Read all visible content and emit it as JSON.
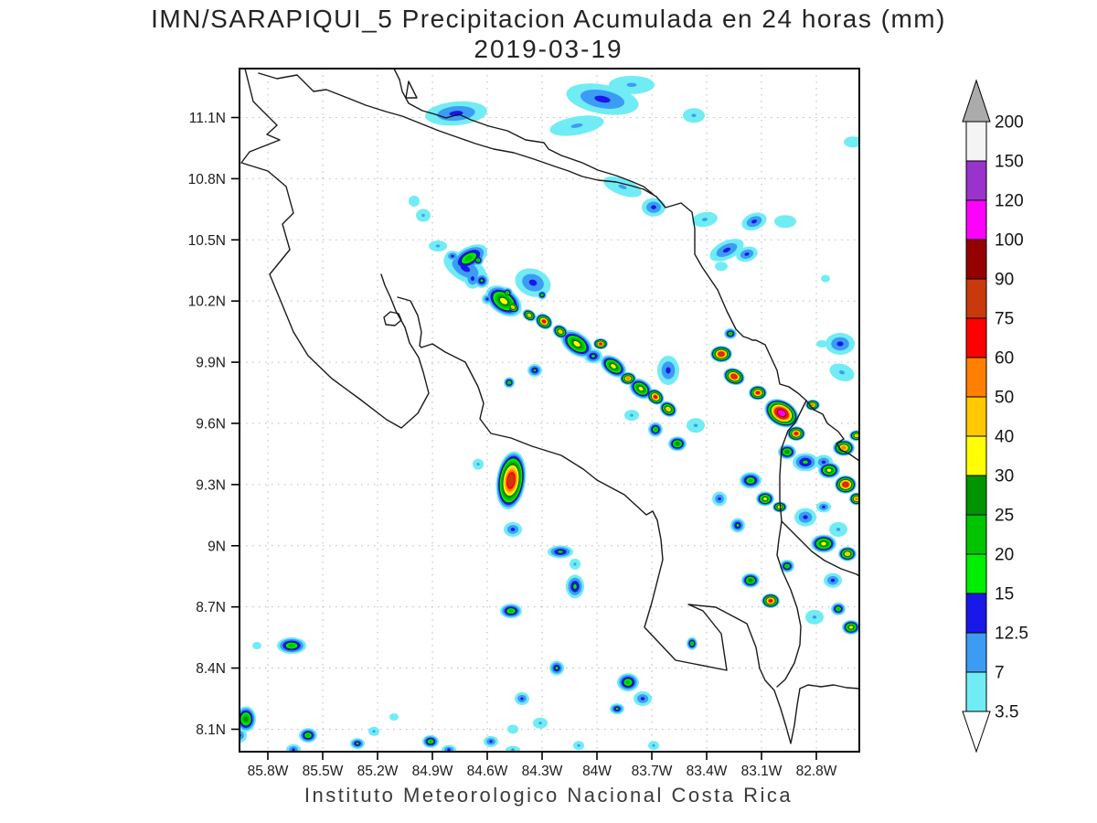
{
  "title": {
    "line1": "IMN/SARAPIQUI_5 Precipitacion Acumulada en 24 horas (mm)",
    "line2": "2019-03-19"
  },
  "footer": "Instituto Meteorologico Nacional Costa Rica",
  "map_axes": {
    "lat_labels": [
      "11.1N",
      "10.8N",
      "10.5N",
      "10.2N",
      "9.9N",
      "9.6N",
      "9.3N",
      "9N",
      "8.7N",
      "8.4N",
      "8.1N"
    ],
    "lon_labels": [
      "85.8W",
      "85.5W",
      "85.2W",
      "84.9W",
      "84.6W",
      "84.3W",
      "84W",
      "83.7W",
      "83.4W",
      "83.1W",
      "82.8W"
    ],
    "grid_color": "#b8b8b8",
    "frame_color": "#000000"
  },
  "colorbar": {
    "labels_top_to_bottom": [
      "200",
      "150",
      "120",
      "100",
      "90",
      "75",
      "60",
      "50",
      "40",
      "30",
      "25",
      "20",
      "15",
      "12.5",
      "7",
      "3.5"
    ],
    "over_arrow_color": "#ababab",
    "under_arrow_color": "#ffffff"
  },
  "chart_data": {
    "type": "heatmap",
    "title": "IMN/SARAPIQUI_5 Precipitacion Acumulada en 24 horas (mm)",
    "date": "2019-03-19",
    "units": "mm / 24 h",
    "source_caption": "Instituto Meteorologico Nacional Costa Rica",
    "lon_extent_degW": [
      85.955,
      82.565
    ],
    "lat_extent_degN": [
      7.99,
      11.34
    ],
    "grid_step_deg": 0.3,
    "lon_tick_degW": [
      85.8,
      85.5,
      85.2,
      84.9,
      84.6,
      84.3,
      84.0,
      83.7,
      83.4,
      83.1,
      82.8
    ],
    "lat_tick_degN": [
      11.1,
      10.8,
      10.5,
      10.2,
      9.9,
      9.6,
      9.3,
      9.0,
      8.7,
      8.4,
      8.1
    ],
    "levels_mm": [
      3.5,
      7,
      12.5,
      15,
      20,
      25,
      30,
      40,
      50,
      60,
      75,
      90,
      100,
      120,
      150,
      200
    ],
    "palette": [
      "#70ecf4",
      "#3c9cf4",
      "#1818e8",
      "#00ee00",
      "#00c400",
      "#009400",
      "#ffff00",
      "#ffc800",
      "#ff8000",
      "#ff0000",
      "#c83a0c",
      "#950000",
      "#ff00ff",
      "#9933cb",
      "#f4f4f4",
      "#ababab"
    ],
    "max_cell": {
      "lon_degW": 82.99,
      "lat_degN": 9.65,
      "mm": 110
    },
    "cells_note": "each cell = [lon_degW, lat_degN, peak_mm, rx_px, ry_px, rot_deg] - footprint radii in map pixels (200px/deg lon, 223px/deg lat)",
    "cells": [
      [
        84.77,
        11.12,
        12.5,
        34,
        13,
        -5
      ],
      [
        83.97,
        11.19,
        12.5,
        40,
        16,
        10
      ],
      [
        83.81,
        11.26,
        7,
        25,
        10,
        0
      ],
      [
        84.11,
        11.06,
        7,
        30,
        10,
        -10
      ],
      [
        83.69,
        10.66,
        12.5,
        13,
        10,
        0
      ],
      [
        83.86,
        10.76,
        7,
        22,
        9,
        20
      ],
      [
        83.47,
        11.11,
        7,
        12,
        8,
        0
      ],
      [
        82.6,
        10.98,
        3.5,
        10,
        6,
        0
      ],
      [
        85.0,
        10.69,
        3.5,
        6,
        6,
        0
      ],
      [
        84.95,
        10.62,
        7,
        8,
        7,
        0
      ],
      [
        84.7,
        10.41,
        20,
        22,
        12,
        -30
      ],
      [
        84.68,
        10.31,
        12.5,
        9,
        11,
        0
      ],
      [
        84.51,
        10.23,
        3.5,
        6,
        6,
        0
      ],
      [
        83.41,
        10.6,
        7,
        14,
        8,
        -10
      ],
      [
        83.14,
        10.59,
        12.5,
        14,
        9,
        -20
      ],
      [
        82.97,
        10.59,
        3.5,
        12,
        7,
        0
      ],
      [
        83.29,
        10.45,
        12.5,
        20,
        10,
        -25
      ],
      [
        83.18,
        10.43,
        12.5,
        12,
        8,
        -15
      ],
      [
        83.32,
        10.37,
        3.5,
        7,
        5,
        0
      ],
      [
        82.75,
        10.31,
        3.5,
        5,
        4,
        0
      ],
      [
        82.77,
        9.99,
        3.5,
        6,
        4,
        0
      ],
      [
        82.67,
        9.99,
        12.5,
        16,
        12,
        0
      ],
      [
        82.66,
        9.85,
        7,
        14,
        9,
        20
      ],
      [
        84.87,
        10.47,
        7,
        10,
        6,
        0
      ],
      [
        84.79,
        10.42,
        12.5,
        8,
        6,
        0
      ],
      [
        84.72,
        10.36,
        12.5,
        26,
        14,
        30
      ],
      [
        84.63,
        10.3,
        15,
        8,
        8,
        0
      ],
      [
        84.65,
        10.4,
        20,
        6,
        6,
        0
      ],
      [
        84.51,
        10.2,
        30,
        22,
        14,
        35
      ],
      [
        84.46,
        10.17,
        40,
        8,
        6,
        35
      ],
      [
        84.37,
        10.13,
        40,
        8,
        6,
        35
      ],
      [
        84.29,
        10.1,
        60,
        10,
        8,
        35
      ],
      [
        84.2,
        10.05,
        40,
        9,
        7,
        35
      ],
      [
        84.11,
        9.99,
        30,
        20,
        12,
        35
      ],
      [
        83.98,
        9.99,
        60,
        8,
        6,
        0
      ],
      [
        84.02,
        9.93,
        15,
        10,
        8,
        0
      ],
      [
        83.91,
        9.88,
        30,
        16,
        10,
        35
      ],
      [
        83.83,
        9.82,
        50,
        9,
        7,
        0
      ],
      [
        83.76,
        9.77,
        30,
        14,
        10,
        35
      ],
      [
        83.68,
        9.73,
        60,
        10,
        8,
        35
      ],
      [
        83.61,
        9.67,
        40,
        10,
        8,
        35
      ],
      [
        83.32,
        9.94,
        75,
        12,
        9,
        0
      ],
      [
        83.25,
        9.83,
        75,
        12,
        9,
        20
      ],
      [
        83.12,
        9.75,
        60,
        10,
        8,
        0
      ],
      [
        82.99,
        9.65,
        110,
        20,
        14,
        30
      ],
      [
        82.91,
        9.55,
        60,
        10,
        8,
        0
      ],
      [
        82.82,
        9.69,
        50,
        8,
        6,
        0
      ],
      [
        82.65,
        9.48,
        50,
        12,
        9,
        0
      ],
      [
        82.58,
        9.54,
        40,
        8,
        6,
        0
      ],
      [
        82.73,
        9.37,
        30,
        12,
        9,
        0
      ],
      [
        82.64,
        9.3,
        75,
        12,
        10,
        0
      ],
      [
        82.58,
        9.23,
        50,
        8,
        7,
        0
      ],
      [
        82.86,
        9.41,
        15,
        14,
        10,
        0
      ],
      [
        82.96,
        9.46,
        25,
        10,
        8,
        0
      ],
      [
        84.35,
        10.29,
        12.5,
        20,
        15,
        20
      ],
      [
        84.3,
        10.23,
        20,
        5,
        5,
        0
      ],
      [
        84.49,
        10.24,
        20,
        6,
        6,
        0
      ],
      [
        84.6,
        10.21,
        12.5,
        6,
        6,
        0
      ],
      [
        83.61,
        9.86,
        12.5,
        12,
        16,
        0
      ],
      [
        83.68,
        9.57,
        20,
        8,
        8,
        0
      ],
      [
        83.56,
        9.5,
        25,
        10,
        8,
        0
      ],
      [
        83.46,
        9.59,
        7,
        10,
        8,
        0
      ],
      [
        83.81,
        9.64,
        7,
        8,
        6,
        0
      ],
      [
        84.34,
        9.86,
        15,
        8,
        7,
        0
      ],
      [
        84.48,
        9.8,
        20,
        6,
        6,
        0
      ],
      [
        83.27,
        10.04,
        20,
        7,
        6,
        0
      ],
      [
        83.16,
        9.32,
        20,
        12,
        9,
        0
      ],
      [
        83.08,
        9.23,
        30,
        10,
        8,
        0
      ],
      [
        83.0,
        9.19,
        40,
        8,
        6,
        0
      ],
      [
        83.05,
        8.73,
        60,
        10,
        8,
        0
      ],
      [
        83.16,
        8.83,
        25,
        10,
        8,
        0
      ],
      [
        82.96,
        8.9,
        20,
        8,
        7,
        0
      ],
      [
        82.76,
        9.01,
        30,
        14,
        10,
        0
      ],
      [
        82.63,
        8.96,
        40,
        10,
        8,
        0
      ],
      [
        82.86,
        9.14,
        12.5,
        12,
        10,
        0
      ],
      [
        82.71,
        8.83,
        12.5,
        10,
        8,
        0
      ],
      [
        82.81,
        8.65,
        7,
        10,
        8,
        0
      ],
      [
        82.68,
        8.69,
        20,
        8,
        7,
        0
      ],
      [
        82.61,
        8.6,
        30,
        10,
        8,
        0
      ],
      [
        83.23,
        9.1,
        15,
        8,
        8,
        0
      ],
      [
        83.33,
        9.23,
        12.5,
        8,
        8,
        0
      ],
      [
        82.76,
        9.41,
        12.5,
        10,
        8,
        0
      ],
      [
        82.76,
        9.19,
        12.5,
        8,
        6,
        0
      ],
      [
        82.68,
        9.08,
        7,
        10,
        8,
        0
      ],
      [
        84.47,
        9.32,
        75,
        16,
        32,
        8
      ],
      [
        84.46,
        9.08,
        12.5,
        10,
        8,
        0
      ],
      [
        84.65,
        9.4,
        7,
        6,
        6,
        0
      ],
      [
        84.2,
        8.97,
        15,
        14,
        7,
        0
      ],
      [
        84.12,
        8.8,
        15,
        10,
        13,
        0
      ],
      [
        84.12,
        8.91,
        7,
        6,
        6,
        0
      ],
      [
        84.47,
        8.68,
        20,
        12,
        8,
        0
      ],
      [
        85.67,
        8.51,
        20,
        16,
        9,
        0
      ],
      [
        85.86,
        8.51,
        3.5,
        5,
        4,
        0
      ],
      [
        83.48,
        8.52,
        20,
        6,
        7,
        0
      ],
      [
        83.83,
        8.33,
        20,
        12,
        10,
        0
      ],
      [
        83.75,
        8.25,
        12.5,
        10,
        8,
        0
      ],
      [
        83.89,
        8.2,
        15,
        8,
        6,
        0
      ],
      [
        84.22,
        8.4,
        15,
        8,
        8,
        0
      ],
      [
        84.41,
        8.25,
        12.5,
        8,
        7,
        0
      ],
      [
        84.31,
        8.13,
        7,
        8,
        6,
        0
      ],
      [
        84.46,
        8.1,
        3.5,
        6,
        5,
        0
      ],
      [
        85.92,
        8.15,
        25,
        11,
        14,
        0
      ],
      [
        85.955,
        8.07,
        12.5,
        8,
        8,
        0
      ],
      [
        85.58,
        8.07,
        20,
        10,
        8,
        0
      ],
      [
        85.66,
        8.0,
        12.5,
        8,
        6,
        0
      ],
      [
        85.31,
        8.03,
        15,
        8,
        6,
        0
      ],
      [
        85.22,
        8.09,
        7,
        6,
        5,
        0
      ],
      [
        84.91,
        8.04,
        20,
        9,
        7,
        0
      ],
      [
        84.81,
        8.0,
        12.5,
        8,
        5,
        0
      ],
      [
        84.58,
        8.04,
        12.5,
        8,
        6,
        0
      ],
      [
        85.11,
        8.16,
        3.5,
        5,
        4,
        0
      ],
      [
        84.46,
        8.0,
        7,
        8,
        4,
        0
      ],
      [
        84.1,
        8.02,
        7,
        6,
        5,
        0
      ],
      [
        83.69,
        8.02,
        7,
        6,
        5,
        0
      ]
    ]
  }
}
